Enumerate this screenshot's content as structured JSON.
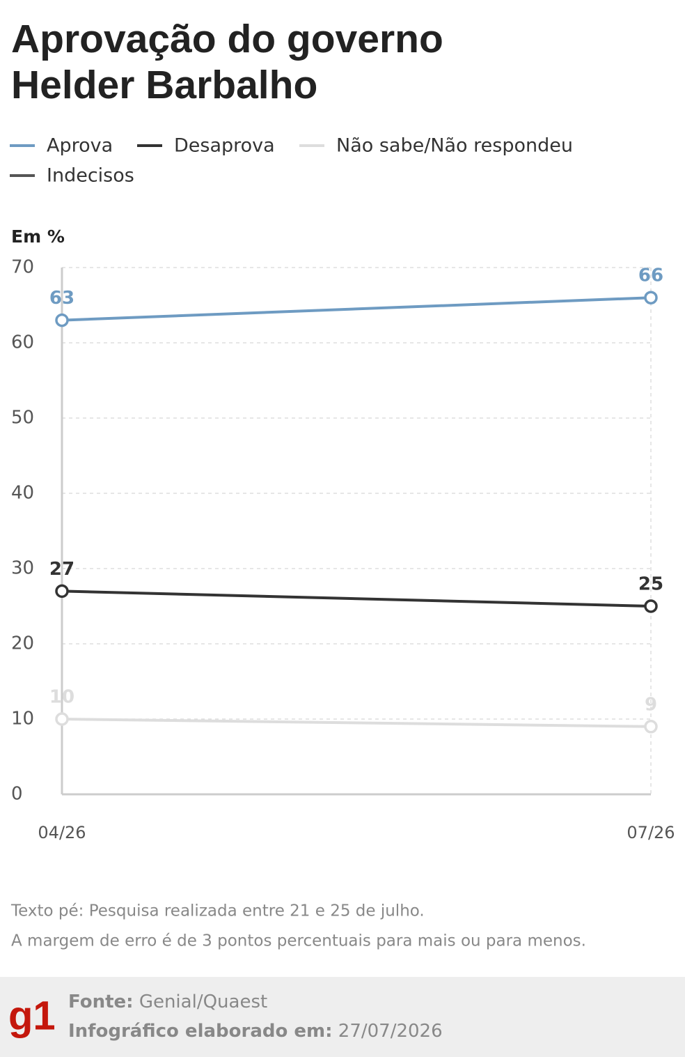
{
  "chart_data": {
    "type": "line",
    "title": [
      "Aprovação do governo",
      "Helder Barbalho"
    ],
    "y_label": "Em %",
    "categories": [
      "04/26",
      "07/26"
    ],
    "series": [
      {
        "name": "Aprova",
        "color": "#6e9bc2",
        "values": [
          63,
          66
        ]
      },
      {
        "name": "Desaprova",
        "color": "#333333",
        "values": [
          27,
          25
        ]
      },
      {
        "name": "Não sabe/Não respondeu",
        "color": "#dddddd",
        "values": [
          10,
          9
        ]
      },
      {
        "name": "Indecisos",
        "color": "#555555",
        "values": [
          null,
          null
        ]
      }
    ],
    "ylim": [
      0,
      70
    ],
    "yticks": [
      0,
      10,
      20,
      30,
      40,
      50,
      60,
      70
    ],
    "grid": true,
    "notes": [
      "Texto pé: Pesquisa realizada entre 21 e 25 de julho.",
      "A margem de erro é de 3 pontos percentuais para mais ou para menos."
    ],
    "source": {
      "label": "Fonte:",
      "text": "Genial/Quaest"
    },
    "made": {
      "label": "Infográfico elaborado em:",
      "text": "27/07/2026"
    },
    "logo": "g1"
  }
}
